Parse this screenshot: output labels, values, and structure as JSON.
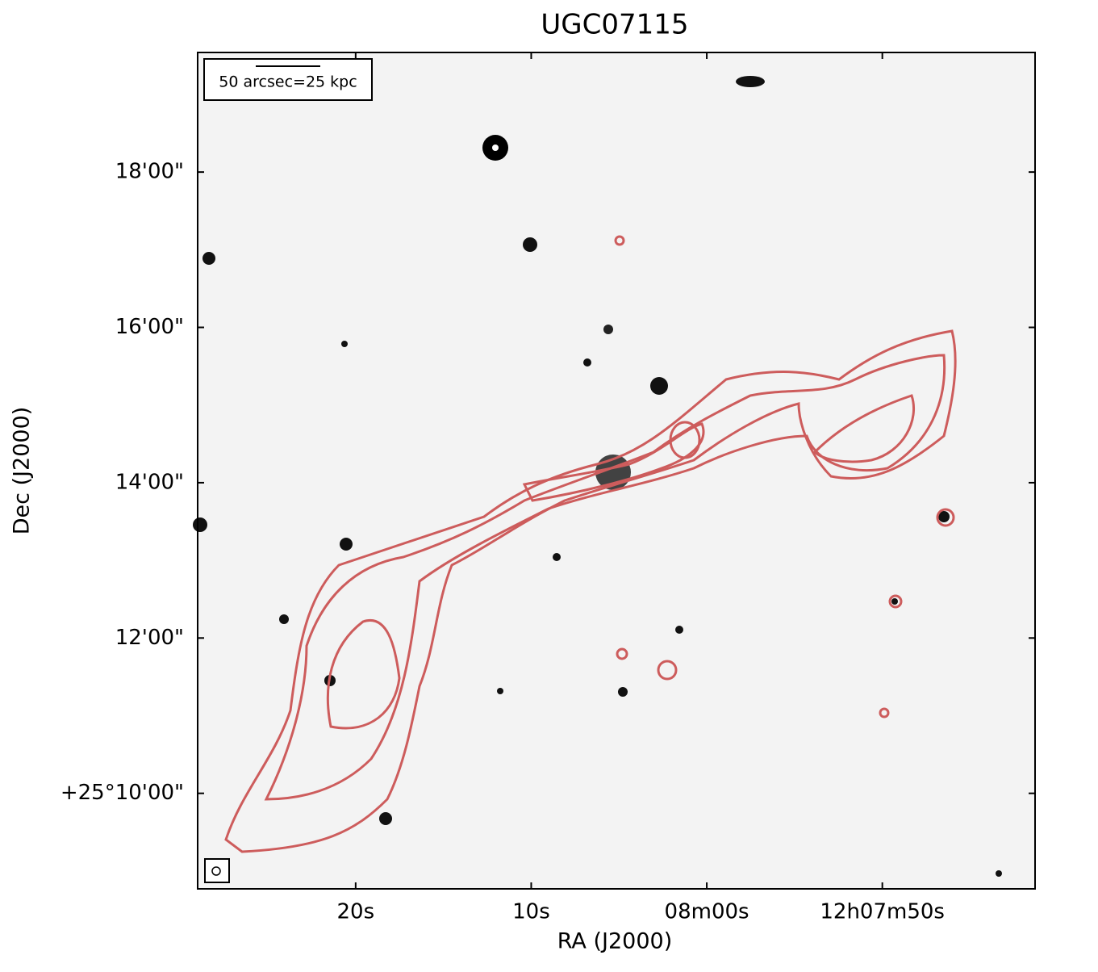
{
  "chart_data": {
    "type": "image",
    "title": "UGC07115",
    "x_label": "RA (J2000)",
    "y_label": "Dec (J2000)",
    "scale_bar_label": "50 arcsec=25 kpc",
    "contour_color": "#cd5c5c",
    "xlim": [
      89,
      41.3
    ],
    "ylim": [
      8.77,
      19.54
    ],
    "xticks": [
      {
        "value": 80,
        "label": "20s"
      },
      {
        "value": 70,
        "label": "10s"
      },
      {
        "value": 60,
        "label": "08m00s"
      },
      {
        "value": 50,
        "label": "12h07m50s"
      }
    ],
    "yticks": [
      {
        "value": 18,
        "label": "18'00\""
      },
      {
        "value": 16,
        "label": "16'00\""
      },
      {
        "value": 14,
        "label": "14'00\""
      },
      {
        "value": 12,
        "label": "12'00\""
      },
      {
        "value": 10,
        "label": "+25°10'00\""
      }
    ]
  }
}
